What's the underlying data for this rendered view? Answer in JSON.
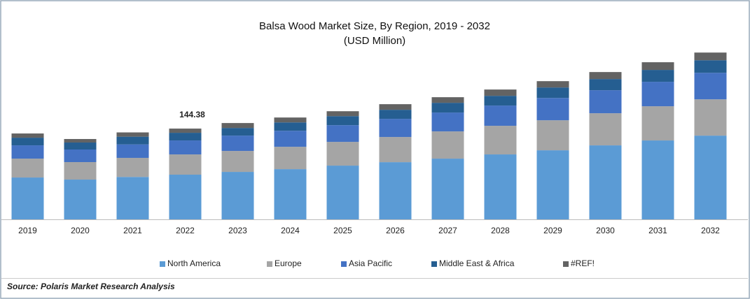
{
  "chart_data": {
    "type": "stacked_bar",
    "title": "Balsa Wood Market Size, By Region, 2019 - 2032",
    "subtitle": "(USD Million)",
    "source": "Source: Polaris  Market Research Analysis",
    "categories": [
      "2019",
      "2020",
      "2021",
      "2022",
      "2023",
      "2024",
      "2025",
      "2026",
      "2027",
      "2028",
      "2029",
      "2030",
      "2031",
      "2032"
    ],
    "series": [
      {
        "name": "North America",
        "color": "#5b9bd5",
        "values": [
          66.6,
          63.3,
          67.5,
          71.1,
          75.5,
          79.9,
          85.5,
          91.0,
          96.6,
          103.3,
          109.9,
          117.7,
          125.5,
          133.2
        ]
      },
      {
        "name": "Europe",
        "color": "#a5a5a5",
        "values": [
          30.0,
          27.8,
          30.3,
          32.2,
          33.3,
          35.5,
          37.7,
          40.0,
          43.3,
          45.5,
          47.7,
          51.1,
          54.4,
          57.7
        ]
      },
      {
        "name": "Asia Pacific",
        "color": "#4472c4",
        "values": [
          21.1,
          20.0,
          21.4,
          22.2,
          24.4,
          25.5,
          26.6,
          28.9,
          30.0,
          32.2,
          35.5,
          36.6,
          38.9,
          42.2
        ]
      },
      {
        "name": "Middle East & Africa",
        "color": "#255e91",
        "values": [
          12.2,
          11.1,
          12.3,
          12.2,
          12.2,
          13.3,
          14.4,
          14.4,
          15.5,
          15.5,
          16.7,
          17.8,
          18.9,
          20.0
        ]
      },
      {
        "name": "#REF!",
        "color": "#636363",
        "values": [
          6.7,
          5.6,
          6.8,
          6.68,
          7.8,
          7.8,
          7.8,
          8.9,
          8.9,
          10.0,
          10.0,
          11.1,
          12.2,
          12.2
        ]
      }
    ],
    "annotation": {
      "category": "2022",
      "text": "144.38"
    },
    "ylim": [
      0,
      300
    ],
    "legend": "bottom"
  }
}
